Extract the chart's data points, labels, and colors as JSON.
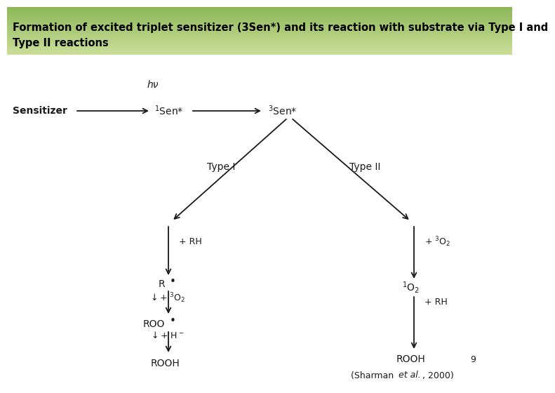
{
  "title_line1": "Formation of excited triplet sensitizer (3Sen*) and its reaction with substrate via Type I and",
  "title_line2": "Type II reactions",
  "title_bg_top": "#a8c878",
  "title_bg_bottom": "#c8dc9a",
  "title_color": "#000000",
  "title_fontsize": 10.5,
  "bg_color": "#ffffff",
  "arrow_color": "#1a1a1a",
  "text_color": "#1a1a1a"
}
